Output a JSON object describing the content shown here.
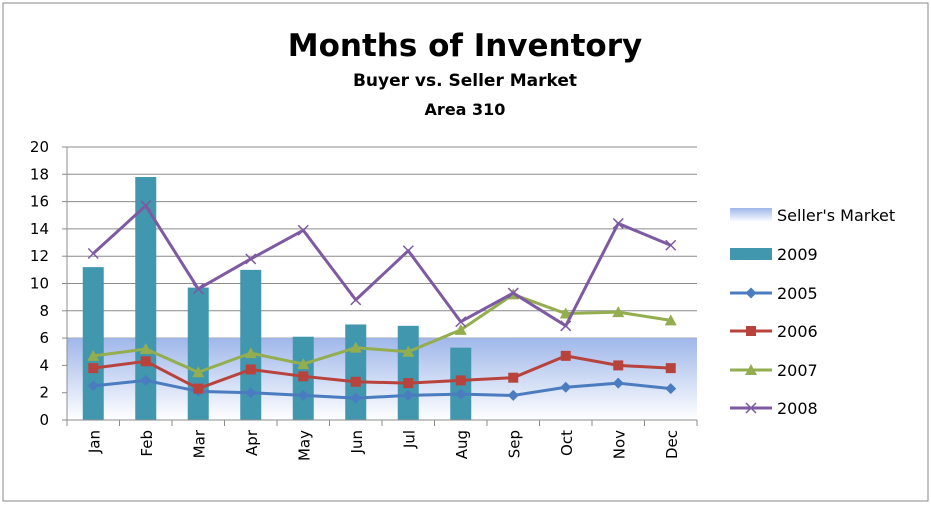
{
  "chart_data": {
    "type": "bar",
    "title": "Months of Inventory",
    "subtitle": "Buyer vs. Seller Market",
    "subtitle2": "Area 310",
    "xlabel": "",
    "ylabel": "",
    "categories": [
      "Jan",
      "Feb",
      "Mar",
      "Apr",
      "May",
      "Jun",
      "Jul",
      "Aug",
      "Sep",
      "Oct",
      "Nov",
      "Dec"
    ],
    "ylim": [
      0,
      20
    ],
    "yticks": [
      "0",
      "2",
      "4",
      "6",
      "8",
      "10",
      "12",
      "14",
      "16",
      "18",
      "20"
    ],
    "grid": true,
    "legend_position": "right",
    "band": {
      "name": "Seller's Market",
      "from": 0,
      "to": 6,
      "color_top": "#9fb7ea",
      "color_bottom": "#ffffff"
    },
    "bar_series": {
      "name": "2009",
      "color": "#4197ae",
      "values": [
        11.2,
        17.8,
        9.7,
        11.0,
        6.1,
        7.0,
        6.9,
        5.3,
        null,
        null,
        null,
        null
      ]
    },
    "series": [
      {
        "name": "2005",
        "color": "#4a7cbf",
        "marker": "diamond",
        "values": [
          2.5,
          2.9,
          2.1,
          2.0,
          1.8,
          1.6,
          1.8,
          1.9,
          1.8,
          2.4,
          2.7,
          2.3
        ]
      },
      {
        "name": "2006",
        "color": "#b8433d",
        "marker": "square",
        "values": [
          3.8,
          4.3,
          2.3,
          3.7,
          3.2,
          2.8,
          2.7,
          2.9,
          3.1,
          4.7,
          4.0,
          3.8
        ]
      },
      {
        "name": "2007",
        "color": "#93ad4f",
        "marker": "triangle",
        "values": [
          4.7,
          5.2,
          3.5,
          4.9,
          4.1,
          5.3,
          5.0,
          6.6,
          9.2,
          7.8,
          7.9,
          7.3
        ]
      },
      {
        "name": "2008",
        "color": "#7e5aa3",
        "marker": "x",
        "values": [
          12.2,
          15.7,
          9.6,
          11.8,
          13.9,
          8.8,
          12.4,
          7.2,
          9.3,
          6.9,
          14.4,
          12.8
        ]
      }
    ]
  }
}
